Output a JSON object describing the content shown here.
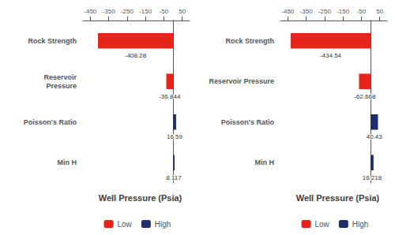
{
  "chart_data": [
    {
      "type": "bar",
      "orientation": "horizontal",
      "xlabel": "Well Pressure (Psia)",
      "categories": [
        "Rock Strength",
        "Reservoir\nPressure",
        "Poisson's Ratio",
        "Min H"
      ],
      "series": [
        {
          "name": "Low",
          "color": "#e8231a",
          "values": [
            -408.28,
            -36.844,
            0,
            0
          ]
        },
        {
          "name": "High",
          "color": "#1f2d6e",
          "values": [
            0,
            0,
            16.59,
            8.117
          ]
        }
      ],
      "xlim": [
        -490,
        90
      ],
      "xticks": [
        -450,
        -350,
        -250,
        -150,
        -50,
        50
      ],
      "data_labels": true,
      "grid": false,
      "legend": "bottom"
    },
    {
      "type": "bar",
      "orientation": "horizontal",
      "xlabel": "Well Pressure (Psia)",
      "categories": [
        "Rock Strength",
        "Reservoir Pressure",
        "Poisson's Ratio",
        "Min H"
      ],
      "series": [
        {
          "name": "Low",
          "color": "#e8231a",
          "values": [
            -434.54,
            -62.668,
            0,
            0
          ]
        },
        {
          "name": "High",
          "color": "#1f2d6e",
          "values": [
            0,
            0,
            40.43,
            16.218
          ]
        }
      ],
      "xlim": [
        -490,
        90
      ],
      "xticks": [
        -450,
        -350,
        -250,
        -150,
        -50,
        50
      ],
      "data_labels": true,
      "grid": false,
      "legend": "bottom"
    }
  ]
}
